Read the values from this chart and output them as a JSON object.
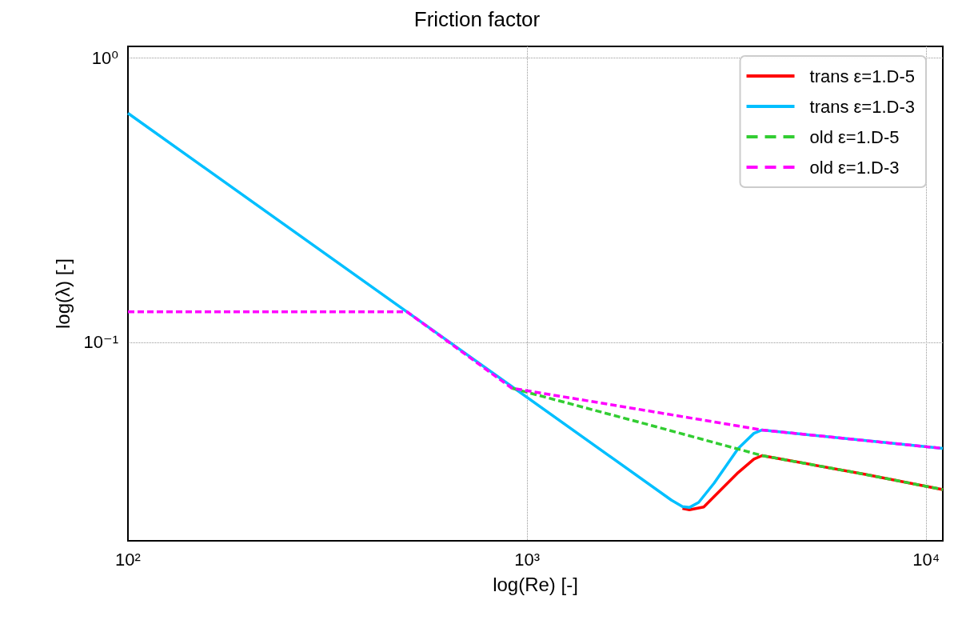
{
  "chart_data": {
    "type": "line",
    "title": "Friction factor",
    "xlabel": "log(Re) [-]",
    "ylabel": "log(λ) [-]",
    "log": "xy",
    "xlim": [
      100,
      11000
    ],
    "ylim": [
      0.02,
      1.1
    ],
    "xticks": [
      {
        "value": 100,
        "label": "10²"
      },
      {
        "value": 1000,
        "label": "10³"
      },
      {
        "value": 10000,
        "label": "10⁴"
      }
    ],
    "yticks": [
      {
        "value": 0.1,
        "label": "10⁻¹"
      },
      {
        "value": 1,
        "label": "10⁰"
      }
    ],
    "grid": true,
    "legend": "top right",
    "marker": "none",
    "series": [
      {
        "name": "trans ε=1.D-5",
        "color": "#ff0000",
        "line_style": "solid",
        "x": [
          2450,
          2550,
          2770,
          2940,
          3380,
          3700,
          3880,
          7000,
          11000
        ],
        "values": [
          0.026,
          0.0257,
          0.0263,
          0.0286,
          0.0348,
          0.0388,
          0.0399,
          0.0343,
          0.0303
        ]
      },
      {
        "name": "trans ε=1.D-3",
        "color": "#00bfff",
        "line_style": "solid",
        "x": [
          100,
          2300,
          2450,
          2550,
          2690,
          2940,
          3380,
          3700,
          3880,
          7000,
          11000
        ],
        "values": [
          0.64,
          0.0278,
          0.0264,
          0.0262,
          0.0273,
          0.0319,
          0.0423,
          0.0478,
          0.0491,
          0.0451,
          0.0423
        ]
      },
      {
        "name": "old ε=1.D-5",
        "color": "#32cd32",
        "line_style": "dashed",
        "x": [
          916,
          2000,
          3880,
          7000,
          11000
        ],
        "values": [
          0.0689,
          0.0514,
          0.0399,
          0.0343,
          0.0303
        ]
      },
      {
        "name": "old ε=1.D-3",
        "color": "#ff00ff",
        "line_style": "dashed",
        "x": [
          100,
          500,
          916,
          2000,
          3880,
          7000,
          11000
        ],
        "values": [
          0.128,
          0.128,
          0.0689,
          0.0574,
          0.0491,
          0.0451,
          0.0423
        ]
      }
    ]
  }
}
